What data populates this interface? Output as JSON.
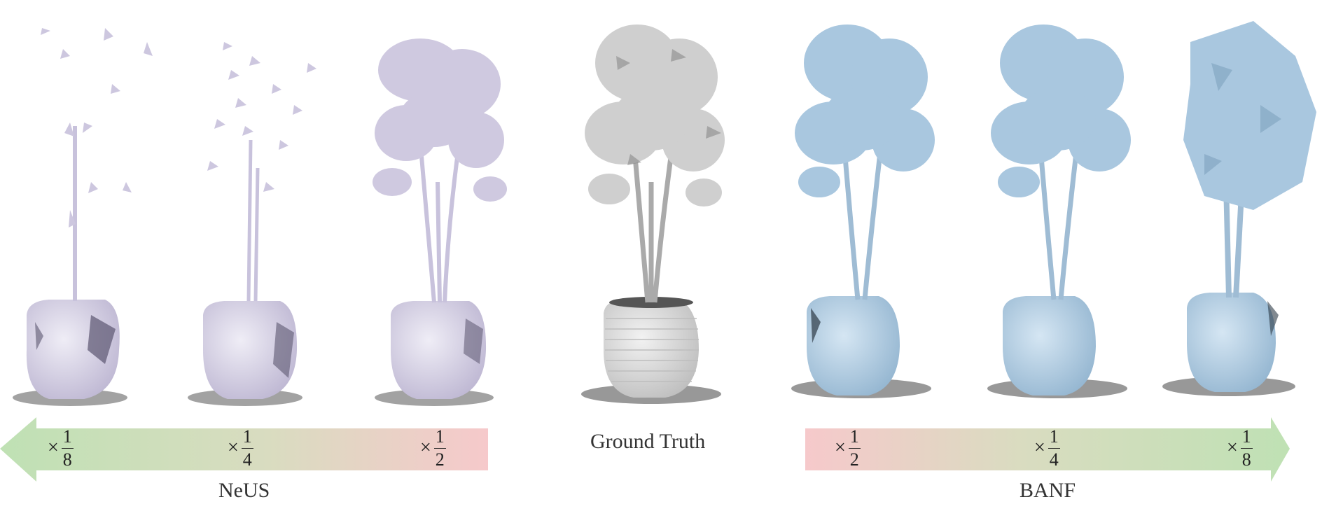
{
  "figure": {
    "neus": {
      "label": "NeUS",
      "scales": [
        {
          "times": "×",
          "num": "1",
          "den": "8"
        },
        {
          "times": "×",
          "num": "1",
          "den": "4"
        },
        {
          "times": "×",
          "num": "1",
          "den": "2"
        }
      ]
    },
    "ground_truth": {
      "label": "Ground Truth"
    },
    "banf": {
      "label": "BANF",
      "scales": [
        {
          "times": "×",
          "num": "1",
          "den": "2"
        },
        {
          "times": "×",
          "num": "1",
          "den": "4"
        },
        {
          "times": "×",
          "num": "1",
          "den": "8"
        }
      ]
    }
  },
  "colors": {
    "neus_mesh": "#d6d2e6",
    "gt_mesh": "#cfcfcf",
    "banf_mesh": "#a9c7df",
    "arrow_green": "#bfe1b4",
    "arrow_pink": "#f6c9cb"
  }
}
